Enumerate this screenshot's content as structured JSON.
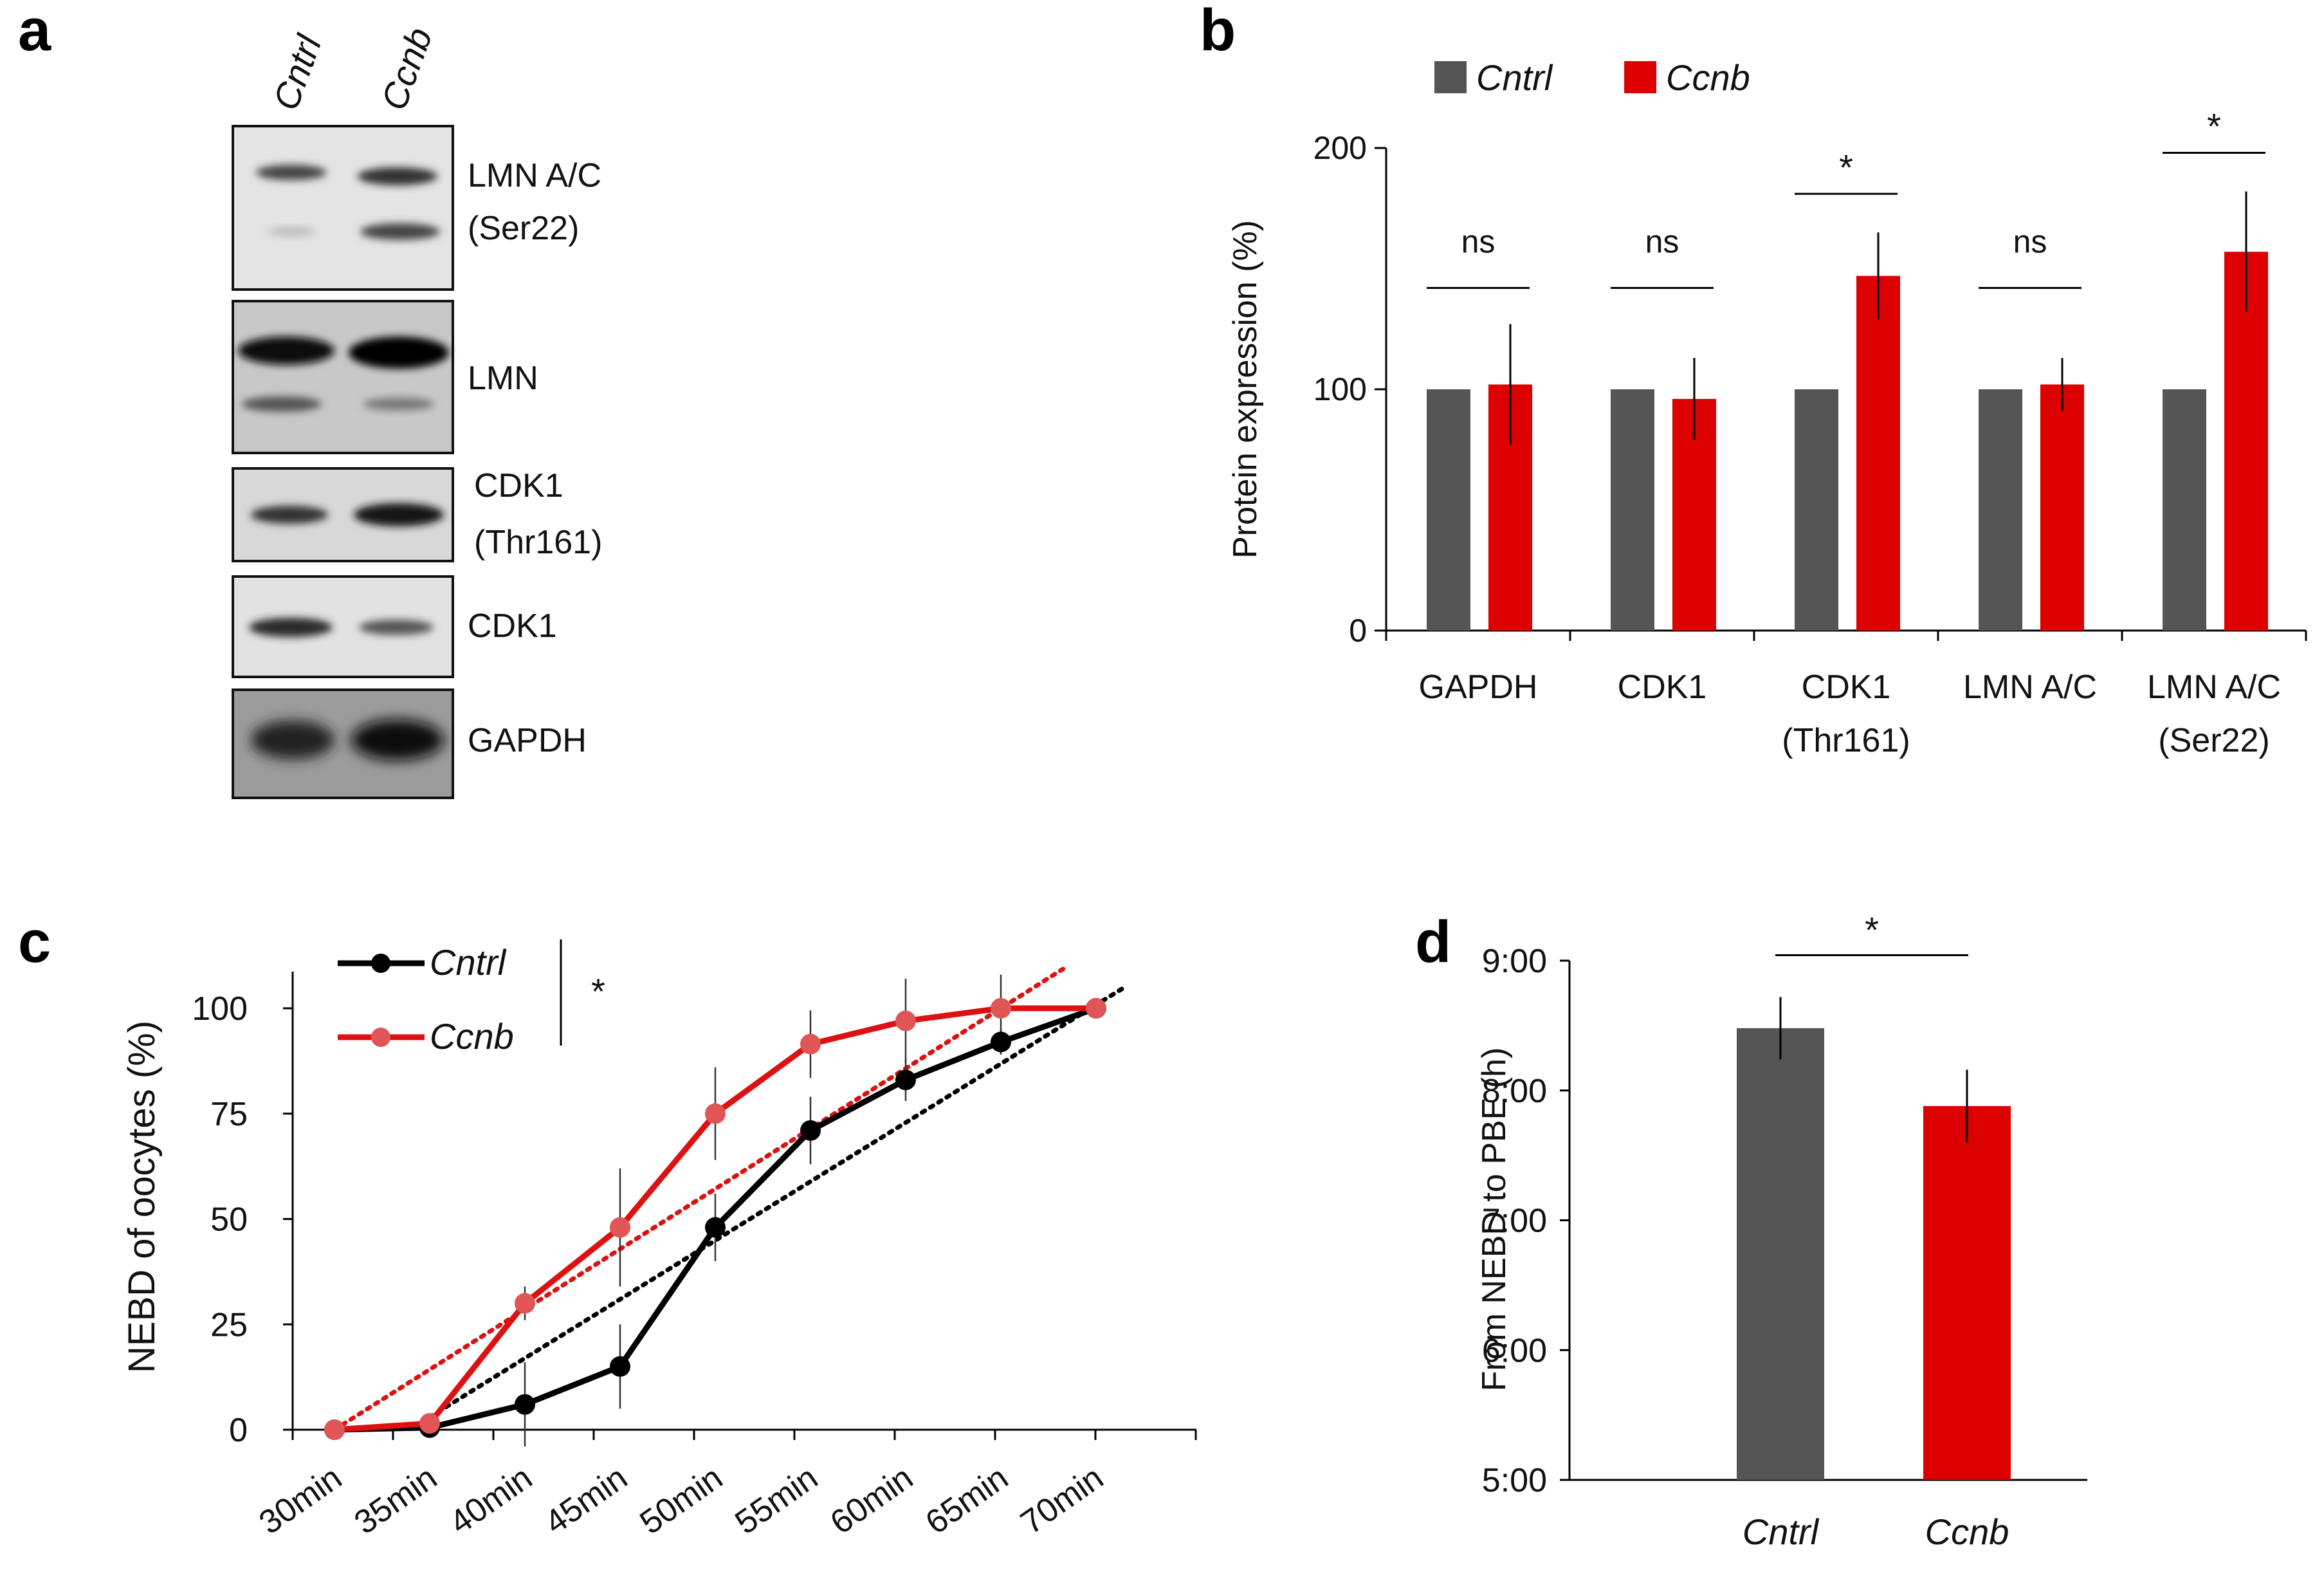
{
  "panels": {
    "a": {
      "letter": "a",
      "lanes": [
        "Cntrl",
        "Ccnb"
      ],
      "blots": [
        {
          "label_lines": [
            "LMN A/C",
            "(Ser22)"
          ]
        },
        {
          "label_lines": [
            "LMN"
          ]
        },
        {
          "label_lines": [
            "CDK1",
            "(Thr161)"
          ]
        },
        {
          "label_lines": [
            "CDK1"
          ]
        },
        {
          "label_lines": [
            "GAPDH"
          ]
        }
      ]
    },
    "b": {
      "letter": "b"
    },
    "c": {
      "letter": "c"
    },
    "d": {
      "letter": "d"
    }
  },
  "colors": {
    "cntrl_gray": "#555555",
    "ccnb_red": "#dd0000",
    "ccnb_line": "#dd1111",
    "ccnb_marker": "#e05555",
    "cntrl_line": "#000000"
  },
  "chart_data": [
    {
      "panel": "b",
      "type": "bar",
      "title": "",
      "ylabel": "Protein expression (%)",
      "xlabel": "",
      "ylim": [
        0,
        200
      ],
      "yticks": [
        0,
        100,
        200
      ],
      "grid": false,
      "legend": {
        "position": "top-left",
        "entries": [
          "Cntrl",
          "Ccnb"
        ]
      },
      "categories": [
        [
          "GAPDH"
        ],
        [
          "CDK1"
        ],
        [
          "CDK1",
          "(Thr161)"
        ],
        [
          "LMN A/C"
        ],
        [
          "LMN A/C",
          "(Ser22)"
        ]
      ],
      "series": [
        {
          "name": "Cntrl",
          "values": [
            100,
            100,
            100,
            100,
            100
          ],
          "errors": [
            0,
            0,
            0,
            0,
            0
          ]
        },
        {
          "name": "Ccnb",
          "values": [
            102,
            96,
            147,
            102,
            157
          ],
          "errors": [
            25,
            17,
            18,
            11,
            25
          ]
        }
      ],
      "significance": [
        "ns",
        "ns",
        "*",
        "ns",
        "*"
      ]
    },
    {
      "panel": "c",
      "type": "line",
      "title": "",
      "ylabel": "NEBD of oocytes (%)",
      "xlabel": "",
      "ylim": [
        0,
        110
      ],
      "yticks": [
        0,
        25,
        50,
        75,
        100
      ],
      "grid": false,
      "legend": {
        "position": "top-left",
        "entries": [
          "Cntrl",
          "Ccnb"
        ]
      },
      "x": [
        "30min",
        "35min",
        "40min",
        "45min",
        "50min",
        "55min",
        "60min",
        "65min",
        "70min"
      ],
      "series": [
        {
          "name": "Cntrl",
          "values": [
            0,
            0.5,
            6,
            15,
            48,
            71,
            83,
            92,
            100
          ],
          "errors": [
            0,
            0,
            10,
            10,
            8,
            8,
            5,
            3,
            0
          ],
          "trend": [
            -11,
            3,
            16,
            29,
            43,
            56,
            69,
            82,
            96,
            105
          ]
        },
        {
          "name": "Ccnb",
          "values": [
            0,
            1.5,
            30,
            48,
            75,
            91.5,
            97,
            100,
            100
          ],
          "errors": [
            0,
            0,
            4,
            14,
            11,
            8,
            10,
            8,
            0
          ],
          "trend": [
            0,
            16,
            31,
            47,
            63,
            79,
            95,
            110
          ]
        }
      ],
      "significance": "*"
    },
    {
      "panel": "d",
      "type": "bar",
      "title": "",
      "ylabel": "From NEBD to PBE (h)",
      "xlabel": "",
      "ylim": [
        5,
        9
      ],
      "yticks": [
        "5:00",
        "6:00",
        "7:00",
        "8:00",
        "9:00"
      ],
      "grid": false,
      "categories": [
        "Cntrl",
        "Ccnb"
      ],
      "values": [
        8.48,
        7.88
      ],
      "errors": [
        0.24,
        0.28
      ],
      "significance": "*"
    }
  ]
}
